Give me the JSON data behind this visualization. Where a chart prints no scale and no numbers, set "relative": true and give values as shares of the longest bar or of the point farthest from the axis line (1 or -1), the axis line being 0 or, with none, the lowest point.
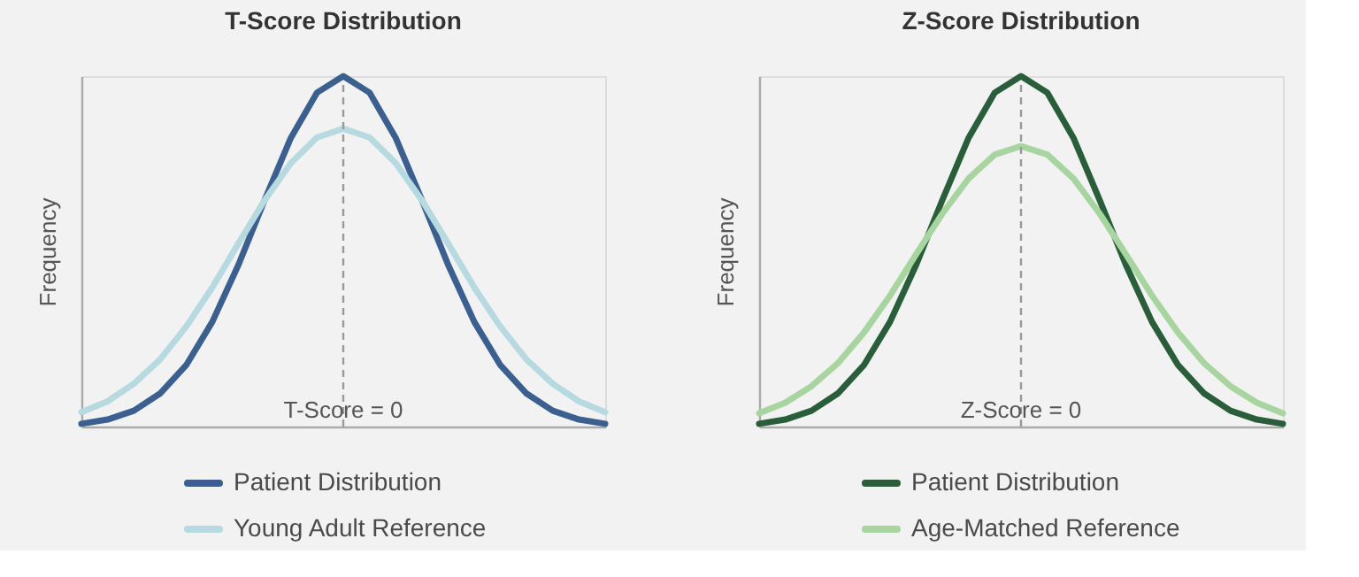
{
  "chart_data": [
    {
      "type": "line",
      "title": "T-Score Distribution",
      "ylabel": "Frequency",
      "relative": true,
      "tick_labels": false,
      "line_style": "solid",
      "legend": "bottom",
      "categories": [
        null,
        null,
        null,
        null,
        null,
        null,
        null,
        null,
        null,
        null,
        null,
        null,
        null,
        null,
        null,
        null,
        null,
        null,
        null,
        null,
        null
      ],
      "series": [
        {
          "name": "Patient Distribution",
          "color": "#3b6090",
          "values": [
            0.008,
            0.02,
            0.045,
            0.094,
            0.175,
            0.299,
            0.462,
            0.647,
            0.824,
            0.953,
            1,
            0.953,
            0.824,
            0.647,
            0.462,
            0.299,
            0.175,
            0.094,
            0.045,
            0.02,
            0.008
          ]
        },
        {
          "name": "Young Adult Reference",
          "color": "#b7d9e0",
          "values": [
            0.041,
            0.072,
            0.122,
            0.191,
            0.285,
            0.397,
            0.523,
            0.646,
            0.752,
            0.825,
            0.85,
            0.825,
            0.752,
            0.646,
            0.523,
            0.397,
            0.285,
            0.191,
            0.122,
            0.072,
            0.041
          ]
        }
      ],
      "annotations": [
        "T-Score = 0"
      ]
    },
    {
      "type": "line",
      "title": "Z-Score Distribution",
      "ylabel": "Frequency",
      "relative": true,
      "tick_labels": false,
      "line_style": "solid",
      "legend": "bottom",
      "categories": [
        null,
        null,
        null,
        null,
        null,
        null,
        null,
        null,
        null,
        null,
        null,
        null,
        null,
        null,
        null,
        null,
        null,
        null,
        null,
        null,
        null
      ],
      "series": [
        {
          "name": "Patient Distribution",
          "color": "#2a5e3a",
          "values": [
            0.008,
            0.02,
            0.045,
            0.094,
            0.175,
            0.299,
            0.462,
            0.647,
            0.824,
            0.953,
            1,
            0.953,
            0.824,
            0.647,
            0.462,
            0.299,
            0.175,
            0.094,
            0.045,
            0.02,
            0.008
          ]
        },
        {
          "name": "Age-Matched Reference",
          "color": "#a8d4a0",
          "values": [
            0.038,
            0.068,
            0.115,
            0.18,
            0.268,
            0.374,
            0.492,
            0.608,
            0.708,
            0.776,
            0.8,
            0.776,
            0.708,
            0.608,
            0.492,
            0.374,
            0.268,
            0.18,
            0.115,
            0.068,
            0.038
          ]
        }
      ],
      "annotations": [
        "Z-Score = 0"
      ]
    }
  ]
}
